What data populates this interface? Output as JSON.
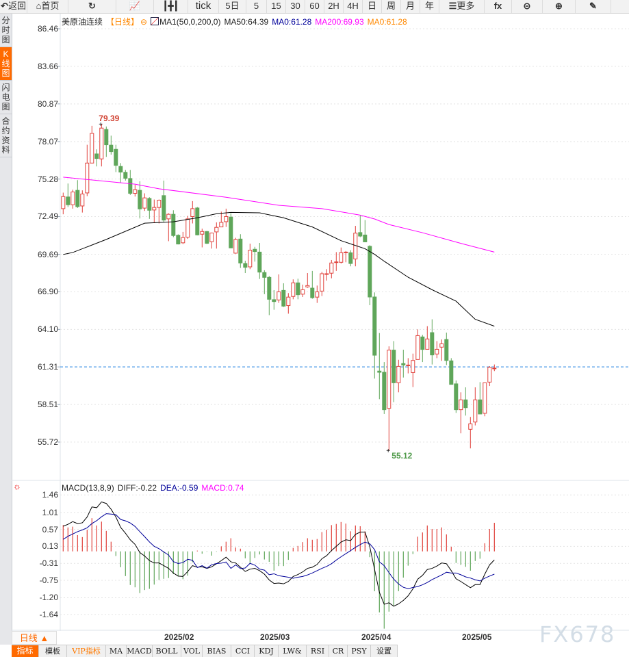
{
  "toolbar": {
    "items": [
      {
        "icon": "back-arrow-icon",
        "glyph": "↶",
        "label": "返回"
      },
      {
        "icon": "home-icon",
        "glyph": "⌂",
        "label": "首页"
      },
      {
        "icon": "refresh-icon",
        "glyph": "↻",
        "label": ""
      },
      {
        "icon": "line-chart-icon",
        "glyph": "📈",
        "label": ""
      },
      {
        "icon": "candlestick-icon",
        "glyph": "┃╋┃",
        "label": ""
      },
      {
        "icon": "",
        "glyph": "",
        "label": "tick"
      },
      {
        "icon": "",
        "glyph": "",
        "label": "5日"
      },
      {
        "icon": "",
        "glyph": "",
        "label": "5"
      },
      {
        "icon": "",
        "glyph": "",
        "label": "15"
      },
      {
        "icon": "",
        "glyph": "",
        "label": "30"
      },
      {
        "icon": "",
        "glyph": "",
        "label": "60"
      },
      {
        "icon": "",
        "glyph": "",
        "label": "2H"
      },
      {
        "icon": "",
        "glyph": "",
        "label": "4H"
      },
      {
        "icon": "",
        "glyph": "",
        "label": "日"
      },
      {
        "icon": "",
        "glyph": "",
        "label": "周"
      },
      {
        "icon": "",
        "glyph": "",
        "label": "月"
      },
      {
        "icon": "",
        "glyph": "",
        "label": "年"
      },
      {
        "icon": "menu-icon",
        "glyph": "☰",
        "label": "更多"
      },
      {
        "icon": "function-icon",
        "glyph": "fx",
        "label": ""
      },
      {
        "icon": "zoom-out-icon",
        "glyph": "⊝",
        "label": ""
      },
      {
        "icon": "zoom-in-icon",
        "glyph": "⊕",
        "label": ""
      },
      {
        "icon": "pen-icon",
        "glyph": "✎",
        "label": ""
      }
    ]
  },
  "sidebar": {
    "tabs": [
      {
        "label": "分时图",
        "active": false
      },
      {
        "label": "K线图",
        "active": true
      },
      {
        "label": "闪电图",
        "active": false
      },
      {
        "label": "合约资料",
        "active": false
      }
    ]
  },
  "price_header": {
    "symbol": "美原油连续",
    "period": "【日线】",
    "indicator": "MA1(50,0,200,0)",
    "ma50": "MA50:64.39",
    "ma0a": "MA0:61.28",
    "ma200": "MA200:69.93",
    "ma0b": "MA0:61.28"
  },
  "macd_header": {
    "name": "MACD(13,8,9)",
    "diff": "DIFF:-0.22",
    "dea": "DEA:-0.59",
    "macd": "MACD:0.74"
  },
  "colors": {
    "up": "#e0403a",
    "down": "#5fa65a",
    "ma50": "#000000",
    "ma200": "#ff00ff",
    "dea": "#000099",
    "macd": "#ff00ff",
    "ma0": "#ff8800",
    "last_price_line": "#1a7fe0",
    "accent": "#ff6a00"
  },
  "chart_data": [
    {
      "type": "candlestick",
      "y_ticks": [
        "86.46",
        "83.66",
        "80.87",
        "78.07",
        "75.28",
        "72.49",
        "69.69",
        "66.90",
        "64.10",
        "61.31",
        "58.51",
        "55.72"
      ],
      "ylim": [
        55.72,
        86.46
      ],
      "x_ticks": [
        "2025/02",
        "2025/03",
        "2025/04",
        "2025/05"
      ],
      "last_price": 61.31,
      "high_label": "79.39",
      "low_label": "55.12",
      "ohlc": [
        [
          73.08,
          74.27,
          72.66,
          73.98
        ],
        [
          73.95,
          74.95,
          73.2,
          73.37
        ],
        [
          73.37,
          74.49,
          73.08,
          74.32
        ],
        [
          74.44,
          75.2,
          73.13,
          73.23
        ],
        [
          73.28,
          74.44,
          72.79,
          74.17
        ],
        [
          74.25,
          77.83,
          74.01,
          76.47
        ],
        [
          76.47,
          79.24,
          76.47,
          78.68
        ],
        [
          77.15,
          77.49,
          76.22,
          76.81
        ],
        [
          76.78,
          79.39,
          76.22,
          79.07
        ],
        [
          78.97,
          79.19,
          76.93,
          77.83
        ],
        [
          77.8,
          78.51,
          77.1,
          77.32
        ],
        [
          77.49,
          77.83,
          75.8,
          76.3
        ],
        [
          76.22,
          76.47,
          75.03,
          75.8
        ],
        [
          75.78,
          75.96,
          75.17,
          75.34
        ],
        [
          75.32,
          75.96,
          74.1,
          74.22
        ],
        [
          74.22,
          74.86,
          73.98,
          74.49
        ],
        [
          74.44,
          75.12,
          72.35,
          73.06
        ],
        [
          73.12,
          74.22,
          72.91,
          73.88
        ],
        [
          73.84,
          73.93,
          72.32,
          72.96
        ],
        [
          72.98,
          73.76,
          72.01,
          73.17
        ],
        [
          73.17,
          73.76,
          71.98,
          73.71
        ],
        [
          74.05,
          75.17,
          72.06,
          72.23
        ],
        [
          72.32,
          72.74,
          70.66,
          72.66
        ],
        [
          72.66,
          72.96,
          70.96,
          71.08
        ],
        [
          71.1,
          71.17,
          70.42,
          70.45
        ],
        [
          70.54,
          71.35,
          70.45,
          70.93
        ],
        [
          70.96,
          72.54,
          70.83,
          72.32
        ],
        [
          72.49,
          73.64,
          71.98,
          73.08
        ],
        [
          73.13,
          73.2,
          71.1,
          71.13
        ],
        [
          71.18,
          71.59,
          70.2,
          71.38
        ],
        [
          71.38,
          71.42,
          70.45,
          70.5
        ],
        [
          70.62,
          71.3,
          70.11,
          71.27
        ],
        [
          71.35,
          72.06,
          70.11,
          71.69
        ],
        [
          71.72,
          72.86,
          71.72,
          72.06
        ],
        [
          72.11,
          73.08,
          71.72,
          72.49
        ],
        [
          72.45,
          72.74,
          70.16,
          70.16
        ],
        [
          69.77,
          70.91,
          69.73,
          70.79
        ],
        [
          70.82,
          71.18,
          68.67,
          69.04
        ],
        [
          69.0,
          69.21,
          68.29,
          68.72
        ],
        [
          68.75,
          70.48,
          68.58,
          69.99
        ],
        [
          70.06,
          70.24,
          69.14,
          69.89
        ],
        [
          69.85,
          70.53,
          67.85,
          68.36
        ],
        [
          68.33,
          68.5,
          66.72,
          67.97
        ],
        [
          67.97,
          68.07,
          65.16,
          66.34
        ],
        [
          66.31,
          67.02,
          65.56,
          66.17
        ],
        [
          66.29,
          68.19,
          66.07,
          66.89
        ],
        [
          67.0,
          67.53,
          65.77,
          65.83
        ],
        [
          65.87,
          66.8,
          65.27,
          66.5
        ],
        [
          66.55,
          67.82,
          66.34,
          67.56
        ],
        [
          67.56,
          67.87,
          66.34,
          66.68
        ],
        [
          66.72,
          67.43,
          66.51,
          67.05
        ],
        [
          67.26,
          68.29,
          67.19,
          67.36
        ],
        [
          67.17,
          68.45,
          66.38,
          66.46
        ],
        [
          66.5,
          67.36,
          66.07,
          66.89
        ],
        [
          66.95,
          68.38,
          66.58,
          68.24
        ],
        [
          68.24,
          68.58,
          67.73,
          68.24
        ],
        [
          68.28,
          69.26,
          67.9,
          69.04
        ],
        [
          69.09,
          69.85,
          68.45,
          69.12
        ],
        [
          69.09,
          70.19,
          69.0,
          69.8
        ],
        [
          69.85,
          69.93,
          69.09,
          69.85
        ],
        [
          69.8,
          69.99,
          68.79,
          69.0
        ],
        [
          69.34,
          71.8,
          68.79,
          71.26
        ],
        [
          71.3,
          72.57,
          70.96,
          71.04
        ],
        [
          71.12,
          72.23,
          70.58,
          70.61
        ],
        [
          70.28,
          70.36,
          65.9,
          66.51
        ],
        [
          66.51,
          66.85,
          60.44,
          62.18
        ],
        [
          61.0,
          63.83,
          58.91,
          60.91
        ],
        [
          60.91,
          61.67,
          57.81,
          58.13
        ],
        [
          58.23,
          62.84,
          55.12,
          62.56
        ],
        [
          62.56,
          63.23,
          58.69,
          60.13
        ],
        [
          60.13,
          61.84,
          59.42,
          61.35
        ],
        [
          61.56,
          62.59,
          60.52,
          61.45
        ],
        [
          61.45,
          61.96,
          60.83,
          61.45
        ],
        [
          60.89,
          62.3,
          59.81,
          61.79
        ],
        [
          61.86,
          64.1,
          61.86,
          63.64
        ],
        [
          63.54,
          63.69,
          61.67,
          62.61
        ],
        [
          62.62,
          64.34,
          62.62,
          63.39
        ],
        [
          63.86,
          64.85,
          61.49,
          62.2
        ],
        [
          62.27,
          63.23,
          61.96,
          62.62
        ],
        [
          62.78,
          63.35,
          61.76,
          63.03
        ],
        [
          63.35,
          63.86,
          61.45,
          61.79
        ],
        [
          61.76,
          61.96,
          60.01,
          60.01
        ],
        [
          60.05,
          60.3,
          57.89,
          58.13
        ],
        [
          58.13,
          59.42,
          56.37,
          58.86
        ],
        [
          58.86,
          59.79,
          57.69,
          58.28
        ],
        [
          56.67,
          57.59,
          55.25,
          57.08
        ],
        [
          57.21,
          59.79,
          56.96,
          58.86
        ],
        [
          58.86,
          60.18,
          57.81,
          57.81
        ],
        [
          57.86,
          60.13,
          57.64,
          60.13
        ],
        [
          60.18,
          61.37,
          59.89,
          61.28
        ],
        [
          61.22,
          61.49,
          61.0,
          61.22
        ]
      ],
      "ma50_points": [
        [
          0,
          69.67
        ],
        [
          2,
          69.82
        ],
        [
          9,
          70.79
        ],
        [
          17,
          72.0
        ],
        [
          23,
          72.1
        ],
        [
          28,
          72.4
        ],
        [
          32,
          72.7
        ],
        [
          35,
          72.8
        ],
        [
          41,
          72.77
        ],
        [
          46,
          72.4
        ],
        [
          52,
          71.72
        ],
        [
          58,
          70.7
        ],
        [
          63,
          70.1
        ],
        [
          65,
          69.68
        ],
        [
          67,
          69.17
        ],
        [
          72,
          67.98
        ],
        [
          77,
          67.05
        ],
        [
          82,
          66.2
        ],
        [
          86,
          64.85
        ],
        [
          90,
          64.34
        ]
      ],
      "ma200_points": [
        [
          0,
          75.42
        ],
        [
          15,
          74.9
        ],
        [
          20,
          74.56
        ],
        [
          34,
          73.93
        ],
        [
          45,
          73.33
        ],
        [
          54,
          73.08
        ],
        [
          62,
          72.6
        ],
        [
          65,
          72.31
        ],
        [
          68,
          71.9
        ],
        [
          75,
          71.29
        ],
        [
          83,
          70.5
        ],
        [
          90,
          69.85
        ]
      ]
    },
    {
      "type": "bar+line",
      "y_ticks": [
        "1.46",
        "1.01",
        "0.57",
        "0.13",
        "-0.31",
        "-0.75",
        "-1.20",
        "-1.64"
      ],
      "ylim": [
        -1.64,
        1.46
      ],
      "diff": [
        0.65,
        0.7,
        0.77,
        0.72,
        0.74,
        0.89,
        1.15,
        1.13,
        1.28,
        1.24,
        1.09,
        0.89,
        0.62,
        0.47,
        0.3,
        0.18,
        -0.03,
        -0.12,
        -0.24,
        -0.3,
        -0.3,
        -0.37,
        -0.44,
        -0.56,
        -0.64,
        -0.65,
        -0.52,
        -0.37,
        -0.41,
        -0.4,
        -0.44,
        -0.4,
        -0.32,
        -0.24,
        -0.15,
        -0.27,
        -0.3,
        -0.41,
        -0.52,
        -0.46,
        -0.44,
        -0.5,
        -0.59,
        -0.74,
        -0.83,
        -0.82,
        -0.84,
        -0.78,
        -0.65,
        -0.6,
        -0.53,
        -0.44,
        -0.41,
        -0.34,
        -0.19,
        -0.11,
        0.02,
        0.13,
        0.24,
        0.3,
        0.28,
        0.44,
        0.5,
        0.5,
        0.12,
        -0.47,
        -1.06,
        -1.37,
        -1.33,
        -1.42,
        -1.36,
        -1.27,
        -1.15,
        -0.97,
        -0.72,
        -0.62,
        -0.47,
        -0.44,
        -0.38,
        -0.3,
        -0.32,
        -0.5,
        -0.71,
        -0.78,
        -0.86,
        -0.94,
        -0.86,
        -0.86,
        -0.59,
        -0.35,
        -0.22
      ],
      "macd": [
        0.68,
        0.62,
        0.64,
        0.42,
        0.37,
        0.56,
        0.86,
        0.67,
        0.77,
        0.53,
        0.25,
        -0.12,
        -0.41,
        -0.64,
        -0.87,
        -0.93,
        -1.08,
        -1.0,
        -0.97,
        -0.86,
        -0.74,
        -0.71,
        -0.69,
        -0.59,
        -0.65,
        -0.72,
        -0.63,
        -0.28,
        0.02,
        -0.06,
        -0.01,
        -0.11,
        -0.01,
        0.13,
        0.25,
        0.34,
        0.1,
        0.07,
        -0.18,
        -0.3,
        -0.17,
        -0.08,
        -0.21,
        -0.27,
        -0.5,
        -0.38,
        -0.38,
        -0.22,
        0.09,
        0.14,
        0.24,
        0.34,
        0.3,
        0.32,
        0.5,
        0.56,
        0.68,
        0.71,
        0.76,
        0.72,
        0.52,
        0.67,
        0.65,
        0.52,
        -0.15,
        -1.03,
        -1.58,
        -2.0,
        -1.56,
        -1.4,
        -1.03,
        -0.68,
        -0.37,
        -0.07,
        0.38,
        0.49,
        0.67,
        0.58,
        0.58,
        0.62,
        0.44,
        0.12,
        -0.3,
        -0.35,
        -0.4,
        -0.5,
        -0.25,
        -0.19,
        0.21,
        0.58,
        0.74
      ]
    }
  ],
  "footer": {
    "period_button": "日线 ▲",
    "tabs": [
      {
        "label": "指标",
        "style": "active"
      },
      {
        "label": "模板",
        "style": ""
      },
      {
        "label": "VIP指标",
        "style": "vip"
      },
      {
        "label": "MA",
        "style": ""
      },
      {
        "label": "MACD",
        "style": ""
      },
      {
        "label": "BOLL",
        "style": ""
      },
      {
        "label": "VOL",
        "style": ""
      },
      {
        "label": "BIAS",
        "style": ""
      },
      {
        "label": "CCI",
        "style": ""
      },
      {
        "label": "KDJ",
        "style": ""
      },
      {
        "label": "LW&",
        "style": ""
      },
      {
        "label": "RSI",
        "style": ""
      },
      {
        "label": "CR",
        "style": ""
      },
      {
        "label": "PSY",
        "style": ""
      },
      {
        "label": "设置",
        "style": ""
      }
    ]
  },
  "watermark": "FX678"
}
